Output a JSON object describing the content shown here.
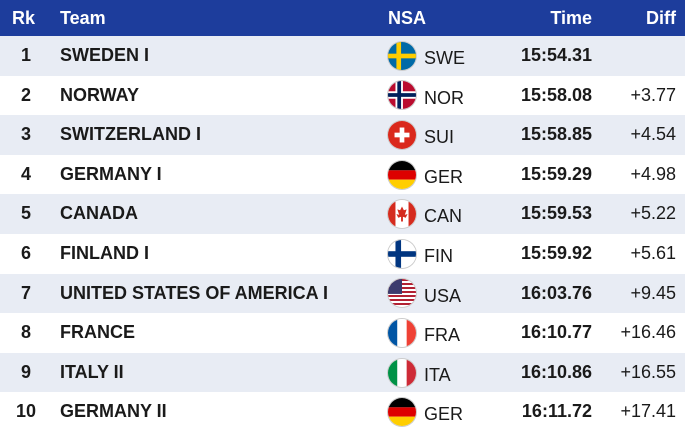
{
  "header": {
    "rank": "Rk",
    "team": "Team",
    "nsa": "NSA",
    "time": "Time",
    "diff": "Diff"
  },
  "rows": [
    {
      "rank": 1,
      "team": "SWEDEN I",
      "nsa": "SWE",
      "time": "15:54.31",
      "diff": null
    },
    {
      "rank": 2,
      "team": "NORWAY",
      "nsa": "NOR",
      "time": "15:58.08",
      "diff": "+3.77"
    },
    {
      "rank": 3,
      "team": "SWITZERLAND I",
      "nsa": "SUI",
      "time": "15:58.85",
      "diff": "+4.54"
    },
    {
      "rank": 4,
      "team": "GERMANY I",
      "nsa": "GER",
      "time": "15:59.29",
      "diff": "+4.98"
    },
    {
      "rank": 5,
      "team": "CANADA",
      "nsa": "CAN",
      "time": "15:59.53",
      "diff": "+5.22"
    },
    {
      "rank": 6,
      "team": "FINLAND I",
      "nsa": "FIN",
      "time": "15:59.92",
      "diff": "+5.61"
    },
    {
      "rank": 7,
      "team": "UNITED STATES OF AMERICA I",
      "nsa": "USA",
      "time": "16:03.76",
      "diff": "+9.45"
    },
    {
      "rank": 8,
      "team": "FRANCE",
      "nsa": "FRA",
      "time": "16:10.77",
      "diff": "+16.46"
    },
    {
      "rank": 9,
      "team": "ITALY II",
      "nsa": "ITA",
      "time": "16:10.86",
      "diff": "+16.55"
    },
    {
      "rank": 10,
      "team": "GERMANY II",
      "nsa": "GER",
      "time": "16:11.72",
      "diff": "+17.41"
    }
  ]
}
